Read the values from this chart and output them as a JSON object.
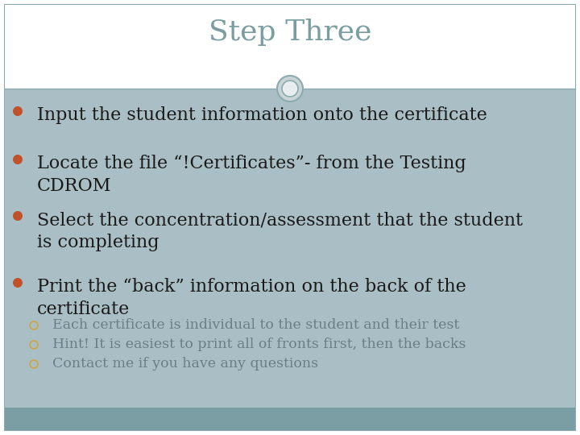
{
  "title": "Step Three",
  "title_color": "#7a9e9f",
  "title_fontsize": 26,
  "bg_color": "#ffffff",
  "content_bg_color": "#aabfc5",
  "footer_bg_color": "#7a9ea3",
  "bullet_color": "#c0522a",
  "sub_bullet_color": "#c8a84b",
  "bullet_text_color": "#1a1a1a",
  "sub_bullet_text_color": "#6a8085",
  "bullet_points": [
    "Input the student information onto the certificate",
    "Locate the file “!Certificates”- from the Testing\nCDROM",
    "Select the concentration/assessment that the student\nis completing",
    "Print the “back” information on the back of the\ncertificate"
  ],
  "sub_bullets": [
    "Each certificate is individual to the student and their test",
    "Hint! It is easiest to print all of fronts first, then the backs",
    "Contact me if you have any questions"
  ],
  "bullet_fontsize": 16,
  "sub_bullet_fontsize": 12.5,
  "border_color": "#8aabaf",
  "circle_fill_color": "#c8d4d6",
  "circle_inner_color": "#e8eeef",
  "circle_outline_color": "#8aabaf"
}
